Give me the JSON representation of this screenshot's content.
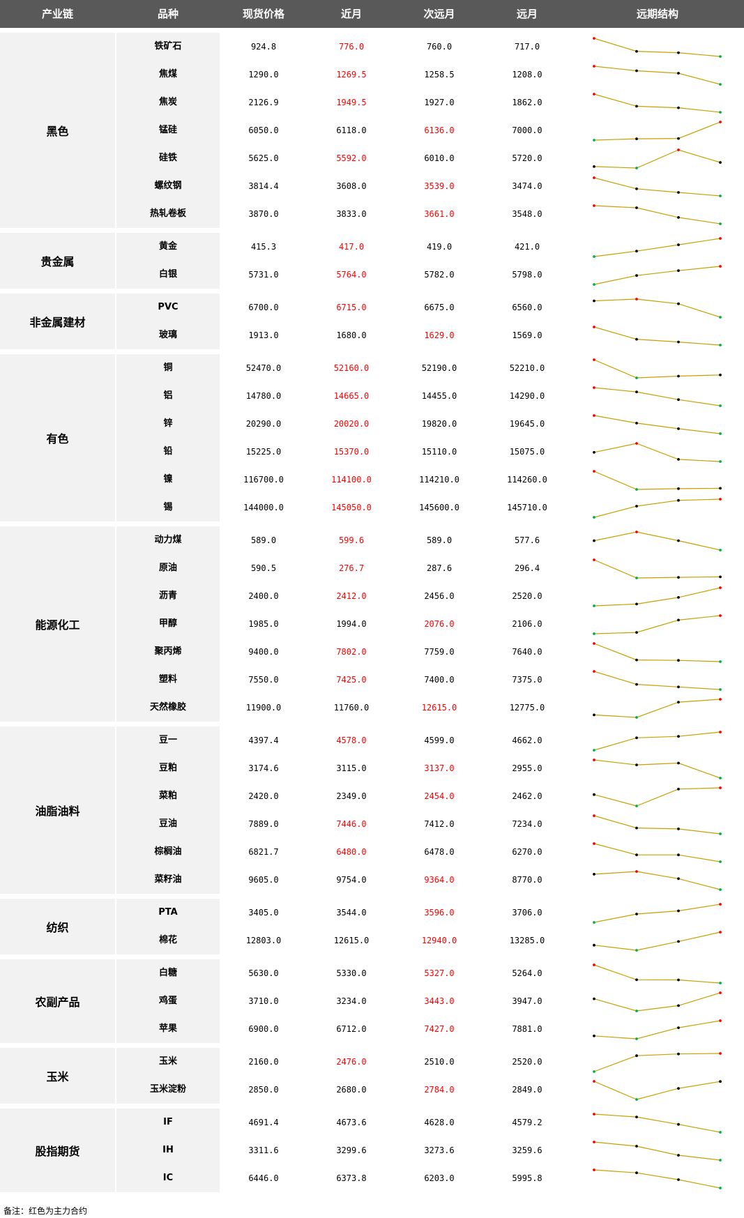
{
  "header": [
    "产业链",
    "品种",
    "现货价格",
    "近月",
    "次远月",
    "远月",
    "远期结构"
  ],
  "note": "备注：红色为主力合约",
  "colors": {
    "header_bg": "#595959",
    "band_bg": "#f2f2f2",
    "main_contract": "#ff0000",
    "line": "#c8a000",
    "max_point": "#ff0000",
    "min_point": "#00b050",
    "mid_point": "#000000"
  },
  "groups": [
    {
      "name": "黑色",
      "rows": [
        {
          "name": "铁矿石",
          "spot": "924.8",
          "near": "776.0",
          "next": "760.0",
          "far": "717.0",
          "main": 1
        },
        {
          "name": "焦煤",
          "spot": "1290.0",
          "near": "1269.5",
          "next": "1258.5",
          "far": "1208.0",
          "main": 1
        },
        {
          "name": "焦炭",
          "spot": "2126.9",
          "near": "1949.5",
          "next": "1927.0",
          "far": "1862.0",
          "main": 1
        },
        {
          "name": "锰硅",
          "spot": "6050.0",
          "near": "6118.0",
          "next": "6136.0",
          "far": "7000.0",
          "main": 2
        },
        {
          "name": "硅铁",
          "spot": "5625.0",
          "near": "5592.0",
          "next": "6010.0",
          "far": "5720.0",
          "main": 1
        },
        {
          "name": "螺纹钢",
          "spot": "3814.4",
          "near": "3608.0",
          "next": "3539.0",
          "far": "3474.0",
          "main": 2
        },
        {
          "name": "热轧卷板",
          "spot": "3870.0",
          "near": "3833.0",
          "next": "3661.0",
          "far": "3548.0",
          "main": 2
        }
      ]
    },
    {
      "name": "贵金属",
      "rows": [
        {
          "name": "黄金",
          "spot": "415.3",
          "near": "417.0",
          "next": "419.0",
          "far": "421.0",
          "main": 1
        },
        {
          "name": "白银",
          "spot": "5731.0",
          "near": "5764.0",
          "next": "5782.0",
          "far": "5798.0",
          "main": 1
        }
      ]
    },
    {
      "name": "非金属建材",
      "rows": [
        {
          "name": "PVC",
          "spot": "6700.0",
          "near": "6715.0",
          "next": "6675.0",
          "far": "6560.0",
          "main": 1
        },
        {
          "name": "玻璃",
          "spot": "1913.0",
          "near": "1680.0",
          "next": "1629.0",
          "far": "1569.0",
          "main": 2
        }
      ]
    },
    {
      "name": "有色",
      "rows": [
        {
          "name": "铜",
          "spot": "52470.0",
          "near": "52160.0",
          "next": "52190.0",
          "far": "52210.0",
          "main": 1
        },
        {
          "name": "铝",
          "spot": "14780.0",
          "near": "14665.0",
          "next": "14455.0",
          "far": "14290.0",
          "main": 1
        },
        {
          "name": "锌",
          "spot": "20290.0",
          "near": "20020.0",
          "next": "19820.0",
          "far": "19645.0",
          "main": 1
        },
        {
          "name": "铅",
          "spot": "15225.0",
          "near": "15370.0",
          "next": "15110.0",
          "far": "15075.0",
          "main": 1
        },
        {
          "name": "镍",
          "spot": "116700.0",
          "near": "114100.0",
          "next": "114210.0",
          "far": "114260.0",
          "main": 1
        },
        {
          "name": "锡",
          "spot": "144000.0",
          "near": "145050.0",
          "next": "145600.0",
          "far": "145710.0",
          "main": 1
        }
      ]
    },
    {
      "name": "能源化工",
      "rows": [
        {
          "name": "动力煤",
          "spot": "589.0",
          "near": "599.6",
          "next": "589.0",
          "far": "577.6",
          "main": 1
        },
        {
          "name": "原油",
          "spot": "590.5",
          "near": "276.7",
          "next": "287.6",
          "far": "296.4",
          "main": 1
        },
        {
          "name": "沥青",
          "spot": "2400.0",
          "near": "2412.0",
          "next": "2456.0",
          "far": "2520.0",
          "main": 1
        },
        {
          "name": "甲醇",
          "spot": "1985.0",
          "near": "1994.0",
          "next": "2076.0",
          "far": "2106.0",
          "main": 2
        },
        {
          "name": "聚丙烯",
          "spot": "9400.0",
          "near": "7802.0",
          "next": "7759.0",
          "far": "7640.0",
          "main": 1
        },
        {
          "name": "塑料",
          "spot": "7550.0",
          "near": "7425.0",
          "next": "7400.0",
          "far": "7375.0",
          "main": 1
        },
        {
          "name": "天然橡胶",
          "spot": "11900.0",
          "near": "11760.0",
          "next": "12615.0",
          "far": "12775.0",
          "main": 2
        }
      ]
    },
    {
      "name": "油脂油料",
      "rows": [
        {
          "name": "豆一",
          "spot": "4397.4",
          "near": "4578.0",
          "next": "4599.0",
          "far": "4662.0",
          "main": 1
        },
        {
          "name": "豆粕",
          "spot": "3174.6",
          "near": "3115.0",
          "next": "3137.0",
          "far": "2955.0",
          "main": 2
        },
        {
          "name": "菜粕",
          "spot": "2420.0",
          "near": "2349.0",
          "next": "2454.0",
          "far": "2462.0",
          "main": 2
        },
        {
          "name": "豆油",
          "spot": "7889.0",
          "near": "7446.0",
          "next": "7412.0",
          "far": "7234.0",
          "main": 1
        },
        {
          "name": "棕榈油",
          "spot": "6821.7",
          "near": "6480.0",
          "next": "6478.0",
          "far": "6270.0",
          "main": 1
        },
        {
          "name": "菜籽油",
          "spot": "9605.0",
          "near": "9754.0",
          "next": "9364.0",
          "far": "8770.0",
          "main": 2
        }
      ]
    },
    {
      "name": "纺织",
      "rows": [
        {
          "name": "PTA",
          "spot": "3405.0",
          "near": "3544.0",
          "next": "3596.0",
          "far": "3706.0",
          "main": 2
        },
        {
          "name": "棉花",
          "spot": "12803.0",
          "near": "12615.0",
          "next": "12940.0",
          "far": "13285.0",
          "main": 2
        }
      ]
    },
    {
      "name": "农副产品",
      "rows": [
        {
          "name": "白糖",
          "spot": "5630.0",
          "near": "5330.0",
          "next": "5327.0",
          "far": "5264.0",
          "main": 2
        },
        {
          "name": "鸡蛋",
          "spot": "3710.0",
          "near": "3234.0",
          "next": "3443.0",
          "far": "3947.0",
          "main": 2
        },
        {
          "name": "苹果",
          "spot": "6900.0",
          "near": "6712.0",
          "next": "7427.0",
          "far": "7881.0",
          "main": 2
        }
      ]
    },
    {
      "name": "玉米",
      "rows": [
        {
          "name": "玉米",
          "spot": "2160.0",
          "near": "2476.0",
          "next": "2510.0",
          "far": "2520.0",
          "main": 1
        },
        {
          "name": "玉米淀粉",
          "spot": "2850.0",
          "near": "2680.0",
          "next": "2784.0",
          "far": "2849.0",
          "main": 2
        }
      ]
    },
    {
      "name": "股指期货",
      "rows": [
        {
          "name": "IF",
          "spot": "4691.4",
          "near": "4673.6",
          "next": "4628.0",
          "far": "4579.2",
          "main": 0
        },
        {
          "name": "IH",
          "spot": "3311.6",
          "near": "3299.6",
          "next": "3273.6",
          "far": "3259.6",
          "main": 0
        },
        {
          "name": "IC",
          "spot": "6446.0",
          "near": "6373.8",
          "next": "6203.0",
          "far": "5995.8",
          "main": 0
        }
      ]
    }
  ]
}
